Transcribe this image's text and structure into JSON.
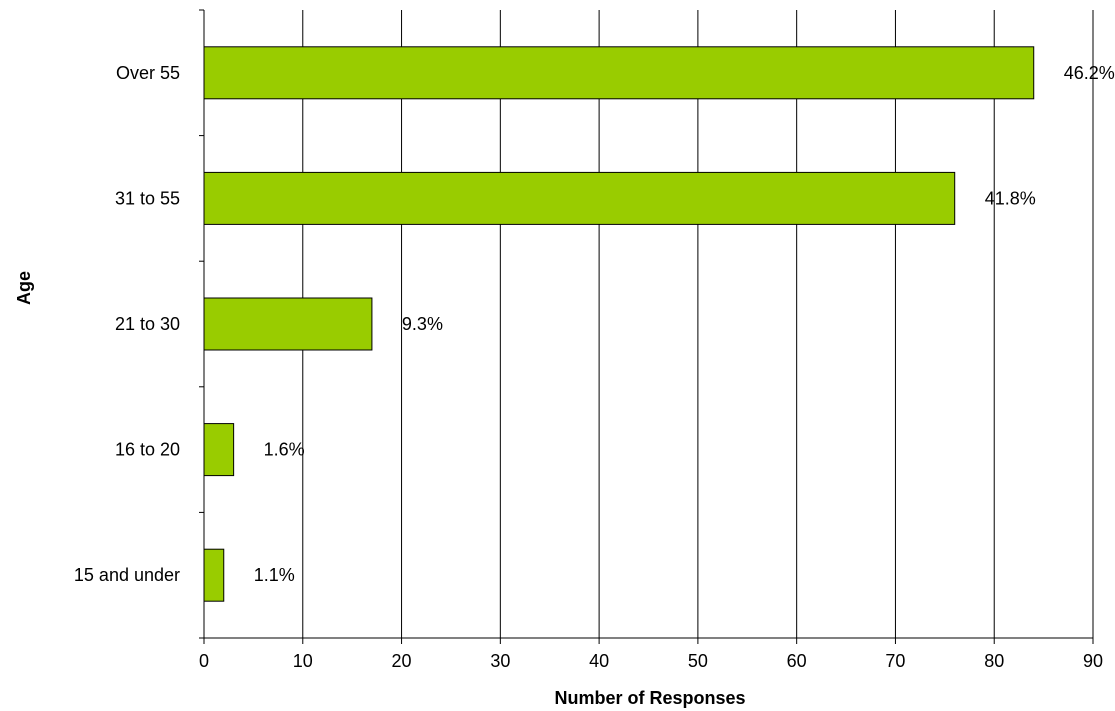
{
  "chart_data": {
    "type": "bar",
    "orientation": "horizontal",
    "categories": [
      "Over 55",
      "31 to 55",
      "21 to 30",
      "16 to 20",
      "15 and under"
    ],
    "values": [
      84,
      76,
      17,
      3,
      2
    ],
    "data_labels": [
      "46.2%",
      "41.8%",
      "9.3%",
      "1.6%",
      "1.1%"
    ],
    "xlabel": "Number of Responses",
    "ylabel": "Age",
    "xlim": [
      0,
      90
    ],
    "xticks": [
      0,
      10,
      20,
      30,
      40,
      50,
      60,
      70,
      80,
      90
    ],
    "grid": "vertical",
    "legend": "none",
    "bar_color": "#99cc00",
    "bar_outline": "#000000"
  }
}
